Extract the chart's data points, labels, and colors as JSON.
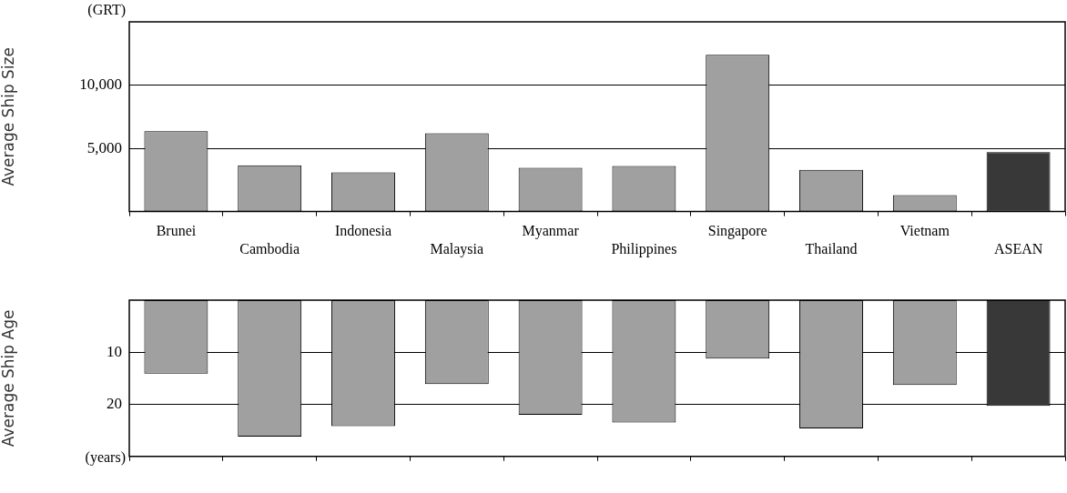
{
  "chart_data": [
    {
      "type": "bar",
      "ylabel": "Average Ship Size",
      "annotations": [
        "(GRT)"
      ],
      "categories": [
        "Brunei",
        "Cambodia",
        "Indonesia",
        "Malaysia",
        "Myanmar",
        "Philippines",
        "Singapore",
        "Thailand",
        "Vietnam",
        "ASEAN"
      ],
      "values": [
        6350,
        3650,
        3100,
        6200,
        3450,
        3600,
        12400,
        3300,
        1300,
        4700
      ],
      "colors": [
        "#a0a0a0",
        "#a0a0a0",
        "#a0a0a0",
        "#a0a0a0",
        "#a0a0a0",
        "#a0a0a0",
        "#a0a0a0",
        "#a0a0a0",
        "#a0a0a0",
        "#383838"
      ],
      "ylim": [
        0,
        15000
      ],
      "yticks": [
        {
          "value": 5000,
          "label": "5,000"
        },
        {
          "value": 10000,
          "label": "10,000"
        }
      ],
      "grid": "y"
    },
    {
      "type": "bar",
      "ylabel": "Average Ship Age",
      "annotations": [
        "(years)"
      ],
      "categories": [
        null,
        null,
        null,
        null,
        null,
        null,
        null,
        null,
        null,
        null
      ],
      "values": [
        14.1,
        26.2,
        24.2,
        16.1,
        22,
        23.5,
        11.2,
        24.6,
        16.3,
        20.3
      ],
      "colors": [
        "#a0a0a0",
        "#a0a0a0",
        "#a0a0a0",
        "#a0a0a0",
        "#a0a0a0",
        "#a0a0a0",
        "#a0a0a0",
        "#a0a0a0",
        "#a0a0a0",
        "#383838"
      ],
      "ylim": [
        30,
        0
      ],
      "yticks": [
        10,
        20
      ],
      "grid": "y"
    }
  ]
}
